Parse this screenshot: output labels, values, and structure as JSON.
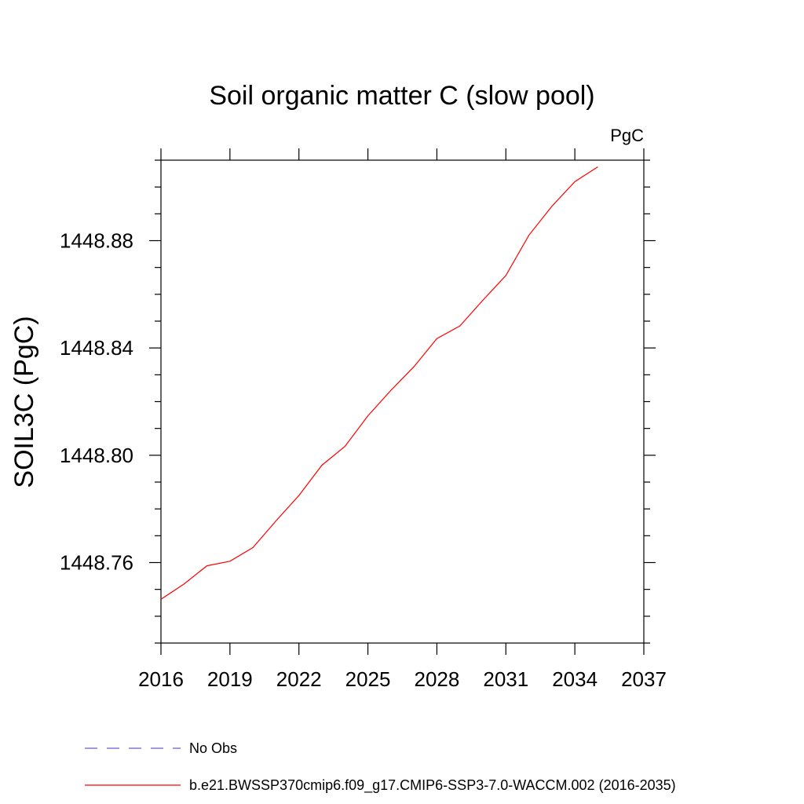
{
  "chart_data": {
    "type": "line",
    "title": "Soil organic matter C (slow pool)",
    "units_label": "PgC",
    "xlabel": "",
    "ylabel": "SOIL3C  (PgC)",
    "xlim": [
      2016,
      2037
    ],
    "ylim": [
      1448.73,
      1448.91
    ],
    "x_ticks": [
      2016,
      2019,
      2022,
      2025,
      2028,
      2031,
      2034,
      2037
    ],
    "y_ticks": [
      1448.76,
      1448.8,
      1448.84,
      1448.88
    ],
    "y_tick_labels": [
      "1448.76",
      "1448.80",
      "1448.84",
      "1448.88"
    ],
    "grid": false,
    "legend_position": "bottom",
    "series": [
      {
        "name": "No Obs",
        "color": "#6a5acd",
        "dash": "dashed",
        "x": [],
        "values": []
      },
      {
        "name": "b.e21.BWSSP370cmip6.f09_g17.CMIP6-SSP3-7.0-WACCM.002 (2016-2035)",
        "color": "#ff0000",
        "dash": "solid",
        "x": [
          2016,
          2017,
          2018,
          2019,
          2020,
          2021,
          2022,
          2023,
          2024,
          2025,
          2026,
          2027,
          2028,
          2029,
          2030,
          2031,
          2032,
          2033,
          2034,
          2035
        ],
        "values": [
          1448.7463,
          1448.752,
          1448.7588,
          1448.7605,
          1448.7656,
          1448.7755,
          1448.785,
          1448.7963,
          1448.8033,
          1448.8147,
          1448.8242,
          1448.833,
          1448.8435,
          1448.8482,
          1448.8578,
          1448.867,
          1448.882,
          1448.8928,
          1448.902,
          1448.9075
        ]
      }
    ]
  }
}
